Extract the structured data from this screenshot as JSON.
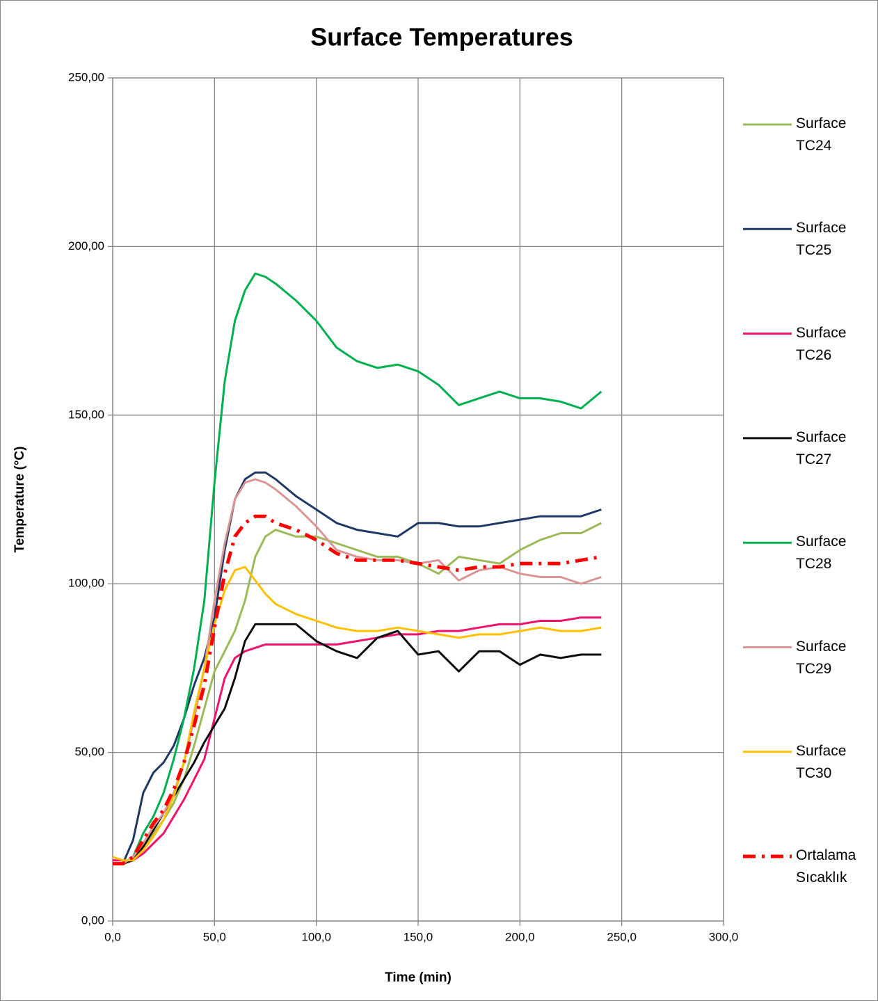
{
  "chart_data": {
    "type": "line",
    "title": "Surface Temperatures",
    "xlabel": "Time (min)",
    "ylabel": "Temperature (°C)",
    "x": [
      0,
      5,
      10,
      15,
      20,
      25,
      30,
      35,
      40,
      45,
      50,
      55,
      60,
      65,
      70,
      75,
      80,
      90,
      100,
      110,
      120,
      130,
      140,
      150,
      160,
      170,
      180,
      190,
      200,
      210,
      220,
      230,
      240
    ],
    "series": [
      {
        "name": "Surface TC24",
        "color": "#9bbb59",
        "values": [
          17,
          17,
          18,
          22,
          26,
          30,
          35,
          42,
          52,
          63,
          74,
          80,
          86,
          95,
          108,
          114,
          116,
          114,
          114,
          112,
          110,
          108,
          108,
          106,
          103,
          108,
          107,
          106,
          110,
          113,
          115,
          115,
          118
        ]
      },
      {
        "name": "Surface TC25",
        "color": "#1f3864",
        "values": [
          17,
          17,
          24,
          38,
          44,
          47,
          52,
          60,
          70,
          78,
          90,
          110,
          125,
          131,
          133,
          133,
          131,
          126,
          122,
          118,
          116,
          115,
          114,
          118,
          118,
          117,
          117,
          118,
          119,
          120,
          120,
          120,
          122
        ]
      },
      {
        "name": "Surface TC26",
        "color": "#f0136e",
        "values": [
          18,
          18,
          18,
          20,
          23,
          26,
          31,
          36,
          42,
          48,
          60,
          72,
          78,
          80,
          81,
          82,
          82,
          82,
          82,
          82,
          83,
          84,
          85,
          85,
          86,
          86,
          87,
          88,
          88,
          89,
          89,
          90,
          90
        ]
      },
      {
        "name": "Surface TC27",
        "color": "#0d0d0d",
        "values": [
          17,
          17,
          18,
          22,
          27,
          32,
          37,
          42,
          47,
          53,
          58,
          63,
          72,
          83,
          88,
          88,
          88,
          88,
          83,
          80,
          78,
          84,
          86,
          79,
          80,
          74,
          80,
          80,
          76,
          79,
          78,
          79,
          79
        ]
      },
      {
        "name": "Surface TC28",
        "color": "#00b050",
        "values": [
          17,
          17,
          19,
          26,
          31,
          38,
          48,
          60,
          75,
          95,
          130,
          160,
          178,
          187,
          192,
          191,
          189,
          184,
          178,
          170,
          166,
          164,
          165,
          163,
          159,
          153,
          155,
          157,
          155,
          155,
          154,
          152,
          157
        ]
      },
      {
        "name": "Surface TC29",
        "color": "#d99694",
        "values": [
          17,
          17,
          19,
          23,
          28,
          32,
          38,
          47,
          60,
          75,
          95,
          112,
          125,
          130,
          131,
          130,
          128,
          123,
          117,
          110,
          108,
          107,
          107,
          106,
          107,
          101,
          104,
          105,
          103,
          102,
          102,
          100,
          102
        ]
      },
      {
        "name": "Surface TC30",
        "color": "#ffc000",
        "values": [
          19,
          18,
          18,
          21,
          25,
          30,
          37,
          47,
          62,
          75,
          88,
          98,
          104,
          105,
          101,
          97,
          94,
          91,
          89,
          87,
          86,
          86,
          87,
          86,
          85,
          84,
          85,
          85,
          86,
          87,
          86,
          86,
          87
        ]
      },
      {
        "name": "Ortalama Sıcaklık",
        "color": "#ff0000",
        "dashed": true,
        "values": [
          17,
          17,
          19,
          24,
          29,
          33,
          39,
          47,
          58,
          70,
          87,
          103,
          114,
          118,
          120,
          120,
          118,
          116,
          113,
          109,
          107,
          107,
          107,
          106,
          105,
          104,
          105,
          105,
          106,
          106,
          106,
          107,
          108
        ]
      }
    ],
    "xlim": [
      0,
      300
    ],
    "xticks": [
      {
        "value": 0,
        "label": "0,0"
      },
      {
        "value": 50,
        "label": "50,0"
      },
      {
        "value": 100,
        "label": "100,0"
      },
      {
        "value": 150,
        "label": "150,0"
      },
      {
        "value": 200,
        "label": "200,0"
      },
      {
        "value": 250,
        "label": "250,0"
      },
      {
        "value": 300,
        "label": "300,0"
      }
    ],
    "ylim": [
      0,
      250
    ],
    "yticks": [
      {
        "value": 0,
        "label": "0,00"
      },
      {
        "value": 50,
        "label": "50,00"
      },
      {
        "value": 100,
        "label": "100,00"
      },
      {
        "value": 150,
        "label": "150,00"
      },
      {
        "value": 200,
        "label": "200,00"
      },
      {
        "value": 250,
        "label": "250,00"
      }
    ],
    "grid": true,
    "legend": "right"
  }
}
